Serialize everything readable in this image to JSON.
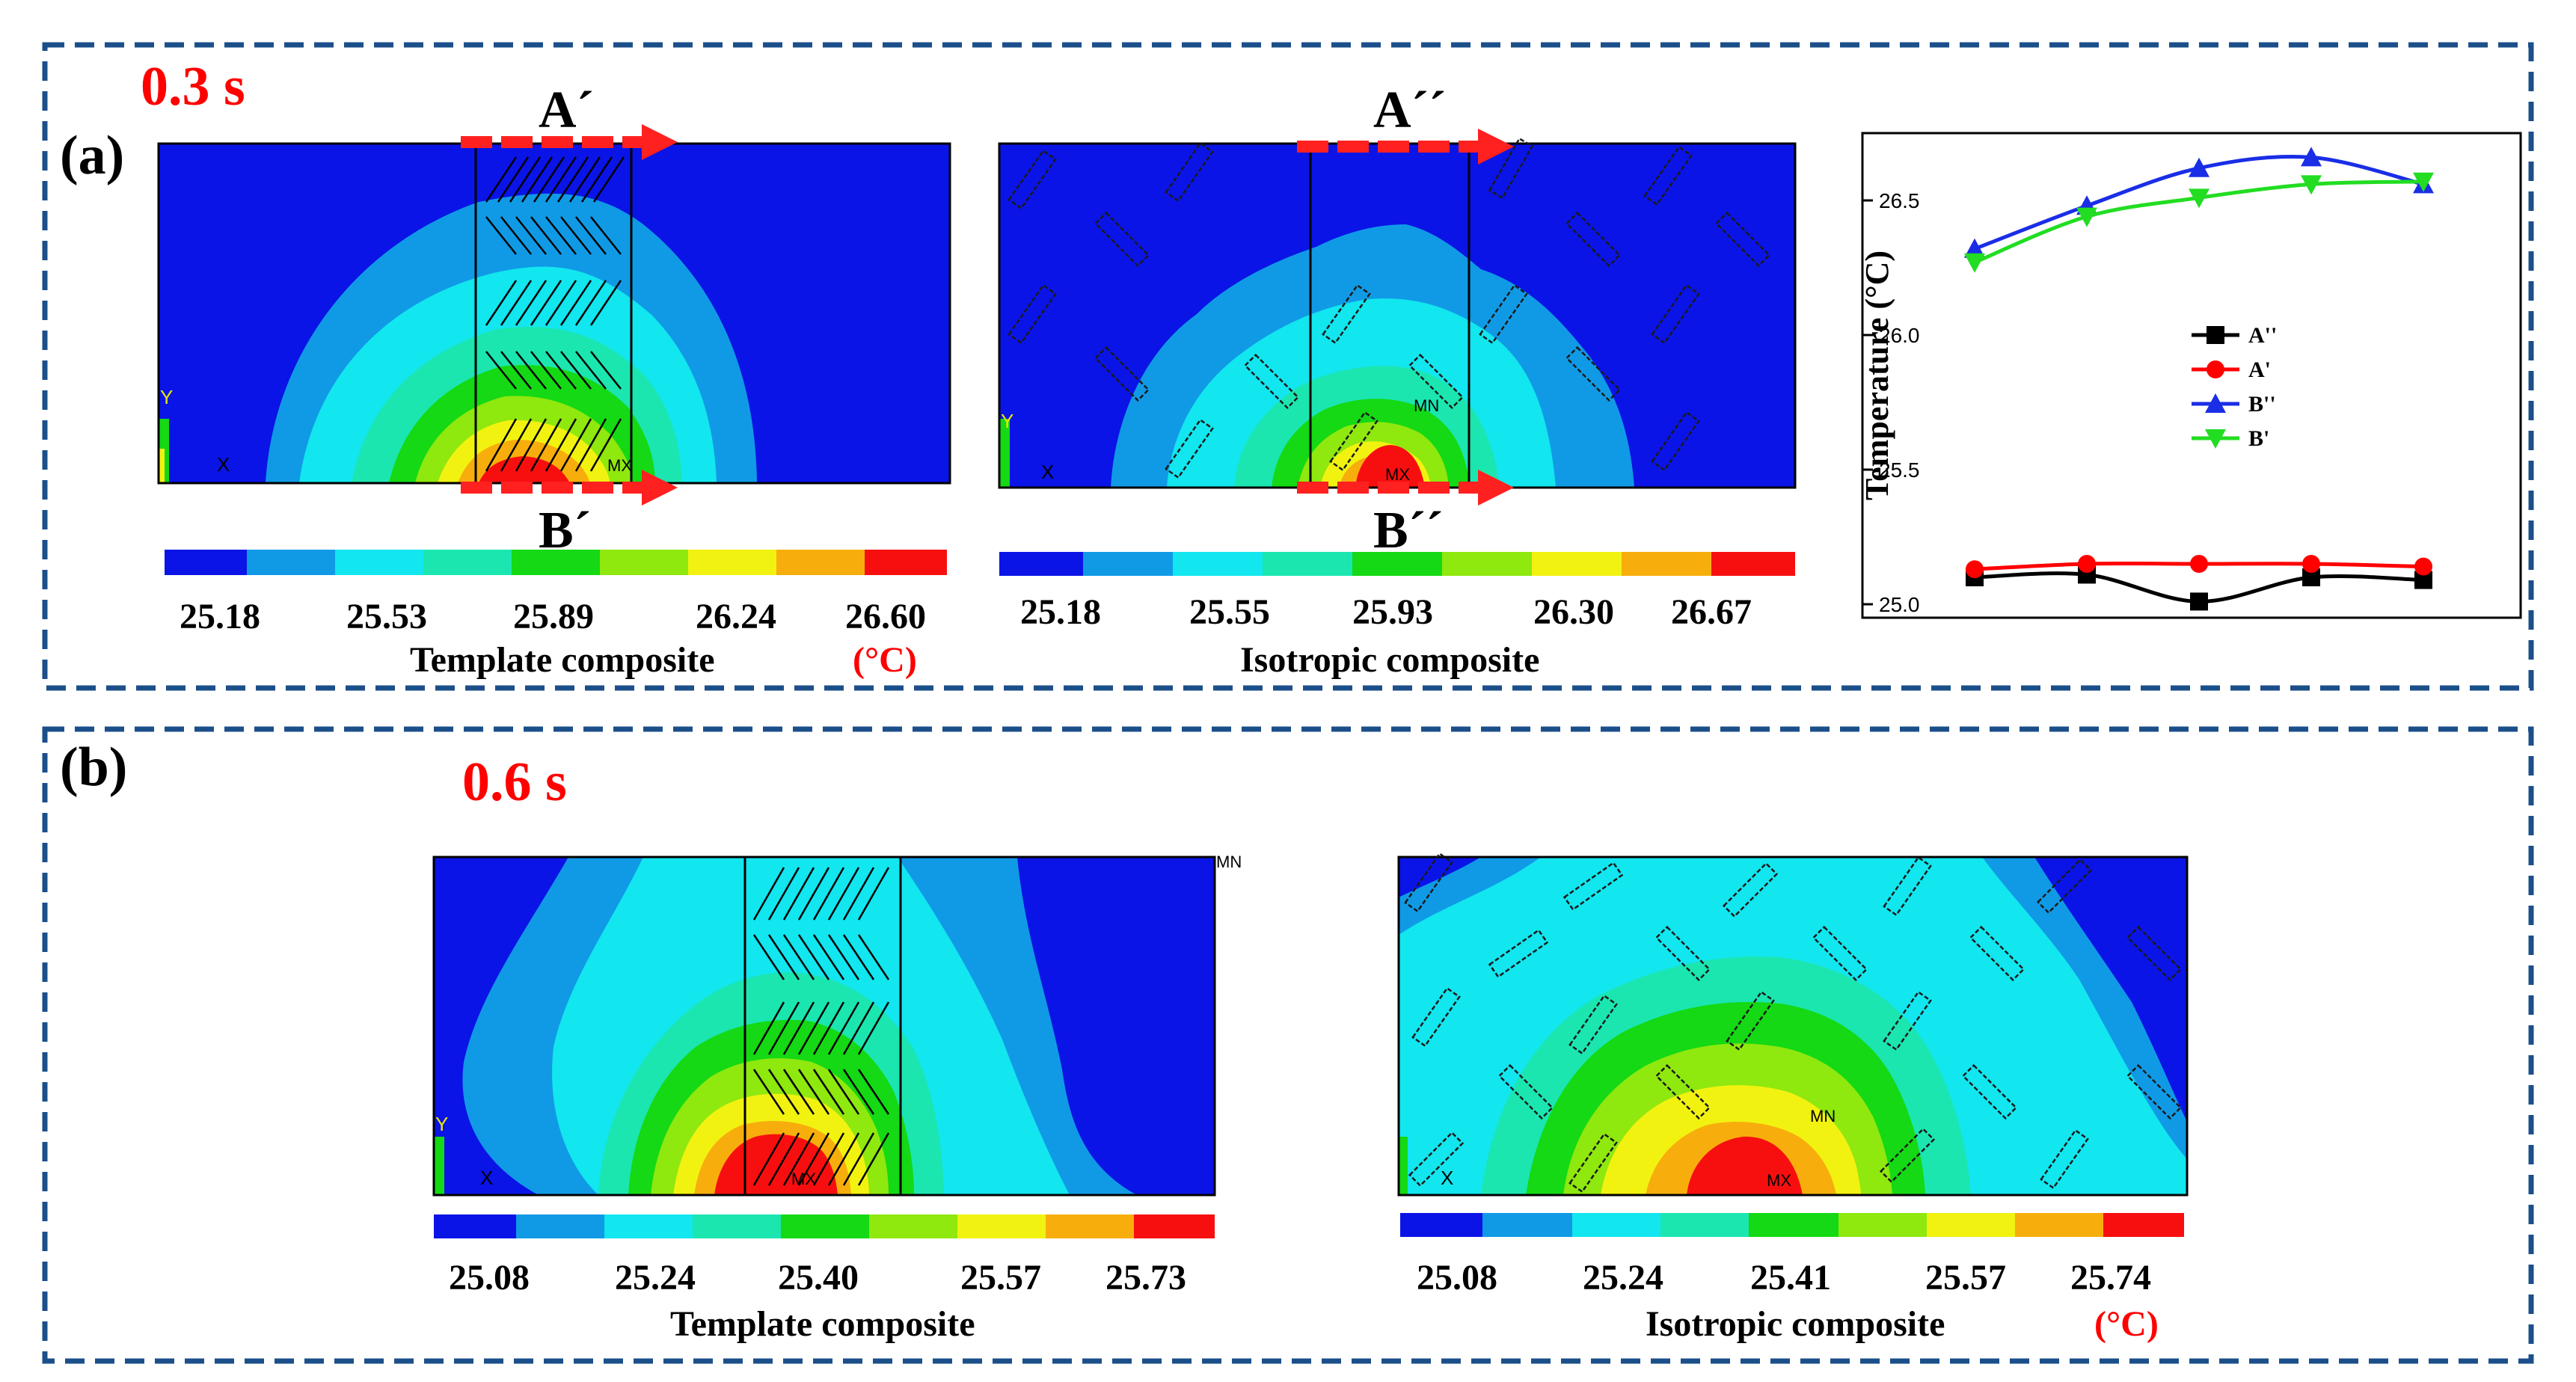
{
  "panel_a": {
    "label": "(a)",
    "time": "0.3 s",
    "template": {
      "title": "Template composite",
      "unit": "(°C)",
      "section_top": "A´",
      "section_bottom": "B´",
      "scale_labels": [
        "25.18",
        "25.53",
        "25.89",
        "26.24",
        "26.60"
      ],
      "annotations": {
        "y_axis": "Y",
        "x_axis": "X",
        "mx": "MX"
      }
    },
    "isotropic": {
      "title": "Isotropic composite",
      "section_top": "A´´",
      "section_bottom": "B´´",
      "scale_labels": [
        "25.18",
        "25.55",
        "25.93",
        "26.30",
        "26.67"
      ],
      "annotations": {
        "y_axis": "Y",
        "x_axis": "X",
        "mx": "MX",
        "mn": "MN"
      }
    }
  },
  "panel_b": {
    "label": "(b)",
    "time": "0.6 s",
    "template": {
      "title": "Template composite",
      "scale_labels": [
        "25.08",
        "25.24",
        "25.40",
        "25.57",
        "25.73"
      ],
      "annotations": {
        "y_axis": "Y",
        "x_axis": "X",
        "mx": "MX",
        "mn": "MN"
      }
    },
    "isotropic": {
      "title": "Isotropic composite",
      "unit": "(°C)",
      "scale_labels": [
        "25.08",
        "25.24",
        "25.41",
        "25.57",
        "25.74"
      ],
      "annotations": {
        "x_axis": "X",
        "mx": "MX",
        "mn": "MN"
      }
    }
  },
  "colors": {
    "levels": [
      "#0a14e6",
      "#109ae6",
      "#12e6ef",
      "#1be6b0",
      "#14d914",
      "#8fe80e",
      "#f2f211",
      "#f7ae0c",
      "#f70f0f"
    ],
    "frame": "#1b4f8a",
    "accent_red": "#ff0000"
  },
  "chart_data": {
    "type": "line",
    "ylabel": "Temperature (°C)",
    "xlabel": "",
    "ylim": [
      24.95,
      26.75
    ],
    "yticks": [
      "25.0",
      "25.5",
      "26.0",
      "26.5"
    ],
    "x": [
      1,
      2,
      3,
      4,
      5
    ],
    "legend_position": "center",
    "series": [
      {
        "name": "A''",
        "color": "#000000",
        "marker": "square",
        "values": [
          25.1,
          25.11,
          25.01,
          25.1,
          25.09
        ]
      },
      {
        "name": "A'",
        "color": "#ff0000",
        "marker": "circle",
        "values": [
          25.13,
          25.15,
          25.15,
          25.15,
          25.14
        ]
      },
      {
        "name": "B''",
        "color": "#1a2ee6",
        "marker": "triangle-up",
        "values": [
          26.32,
          26.48,
          26.62,
          26.66,
          26.56
        ]
      },
      {
        "name": "B'",
        "color": "#22dd22",
        "marker": "triangle-down",
        "values": [
          26.27,
          26.44,
          26.51,
          26.56,
          26.57
        ]
      }
    ]
  }
}
